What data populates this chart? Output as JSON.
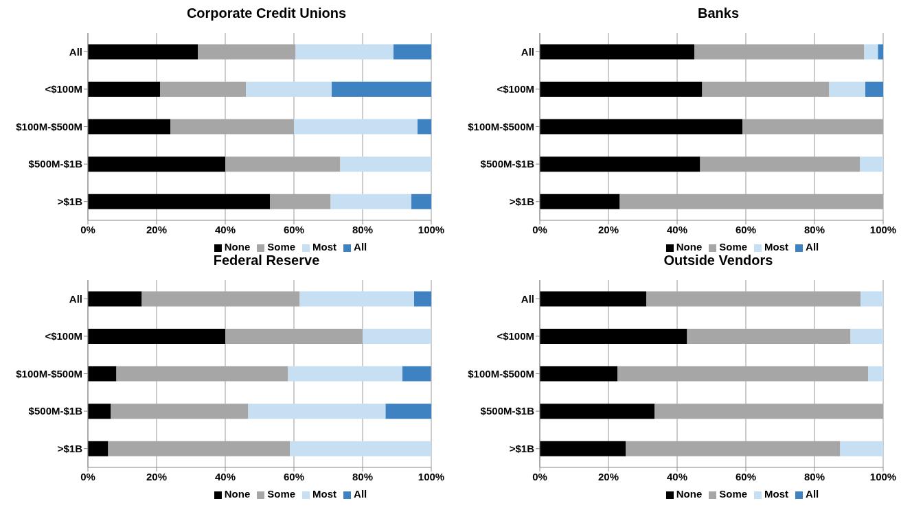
{
  "chart_data": [
    {
      "type": "bar",
      "title": "Corporate Credit Unions",
      "orientation": "horizontal",
      "stacked": true,
      "categories": [
        "All",
        "<$100M",
        "$100M-$500M",
        "$500M-$1B",
        ">$1B"
      ],
      "series": [
        {
          "name": "None",
          "color": "#000000",
          "values": [
            32,
            21,
            24,
            40,
            53
          ]
        },
        {
          "name": "Some",
          "color": "#a6a6a6",
          "values": [
            28.5,
            25,
            36,
            33.5,
            17.7
          ]
        },
        {
          "name": "Most",
          "color": "#c6dff3",
          "values": [
            28.5,
            25,
            36,
            26.5,
            23.5
          ]
        },
        {
          "name": "All",
          "color": "#3f82c1",
          "values": [
            11,
            29,
            4,
            0,
            5.8
          ]
        }
      ],
      "xlim": [
        0,
        100
      ],
      "xticks": [
        {
          "value": 0,
          "label": "0%"
        },
        {
          "value": 20,
          "label": "20%"
        },
        {
          "value": 40,
          "label": "40%"
        },
        {
          "value": 60,
          "label": "60%"
        },
        {
          "value": 80,
          "label": "80%"
        },
        {
          "value": 100,
          "label": "100%"
        }
      ],
      "grid": "x",
      "legend": "bottom"
    },
    {
      "type": "bar",
      "title": "Banks",
      "orientation": "horizontal",
      "stacked": true,
      "categories": [
        "All",
        "<$100M",
        "$100M-$500M",
        "$500M-$1B",
        ">$1B"
      ],
      "series": [
        {
          "name": "None",
          "color": "#000000",
          "values": [
            45,
            47.3,
            59,
            46.7,
            23.3
          ]
        },
        {
          "name": "Some",
          "color": "#a6a6a6",
          "values": [
            49.5,
            37,
            41,
            46.6,
            76.7
          ]
        },
        {
          "name": "Most",
          "color": "#c6dff3",
          "values": [
            4,
            10.5,
            0,
            6.7,
            0
          ]
        },
        {
          "name": "All",
          "color": "#3f82c1",
          "values": [
            1.5,
            5.2,
            0,
            0,
            0
          ]
        }
      ],
      "xlim": [
        0,
        100
      ],
      "xticks": [
        {
          "value": 0,
          "label": "0%"
        },
        {
          "value": 20,
          "label": "20%"
        },
        {
          "value": 40,
          "label": "40%"
        },
        {
          "value": 60,
          "label": "60%"
        },
        {
          "value": 80,
          "label": "80%"
        },
        {
          "value": 100,
          "label": "100%"
        }
      ],
      "grid": "x",
      "legend": "bottom"
    },
    {
      "type": "bar",
      "title": "Federal Reserve",
      "orientation": "horizontal",
      "stacked": true,
      "categories": [
        "All",
        "<$100M",
        "$100M-$500M",
        "$500M-$1B",
        ">$1B"
      ],
      "series": [
        {
          "name": "None",
          "color": "#000000",
          "values": [
            15.7,
            40,
            8.3,
            6.7,
            5.9
          ]
        },
        {
          "name": "Some",
          "color": "#a6a6a6",
          "values": [
            46,
            40,
            50,
            40,
            52.9
          ]
        },
        {
          "name": "Most",
          "color": "#c6dff3",
          "values": [
            33.3,
            20,
            33.3,
            40,
            41.2
          ]
        },
        {
          "name": "All",
          "color": "#3f82c1",
          "values": [
            5,
            0,
            8.3,
            13.3,
            0
          ]
        }
      ],
      "xlim": [
        0,
        100
      ],
      "xticks": [
        {
          "value": 0,
          "label": "0%"
        },
        {
          "value": 20,
          "label": "20%"
        },
        {
          "value": 40,
          "label": "40%"
        },
        {
          "value": 60,
          "label": "60%"
        },
        {
          "value": 80,
          "label": "80%"
        },
        {
          "value": 100,
          "label": "100%"
        }
      ],
      "grid": "x",
      "legend": "bottom"
    },
    {
      "type": "bar",
      "title": "Outside Vendors",
      "orientation": "horizontal",
      "stacked": true,
      "categories": [
        "All",
        "<$100M",
        "$100M-$500M",
        "$500M-$1B",
        ">$1B"
      ],
      "series": [
        {
          "name": "None",
          "color": "#000000",
          "values": [
            31,
            42.9,
            22.6,
            33.4,
            25
          ]
        },
        {
          "name": "Some",
          "color": "#a6a6a6",
          "values": [
            62.4,
            47.6,
            73,
            66.6,
            62.5
          ]
        },
        {
          "name": "Most",
          "color": "#c6dff3",
          "values": [
            6.6,
            9.5,
            4.4,
            0,
            12.5
          ]
        },
        {
          "name": "All",
          "color": "#3f82c1",
          "values": [
            0,
            0,
            0,
            0,
            0
          ]
        }
      ],
      "xlim": [
        0,
        100
      ],
      "xticks": [
        {
          "value": 0,
          "label": "0%"
        },
        {
          "value": 20,
          "label": "20%"
        },
        {
          "value": 40,
          "label": "40%"
        },
        {
          "value": 60,
          "label": "60%"
        },
        {
          "value": 80,
          "label": "80%"
        },
        {
          "value": 100,
          "label": "100%"
        }
      ],
      "grid": "x",
      "legend": "bottom"
    }
  ]
}
